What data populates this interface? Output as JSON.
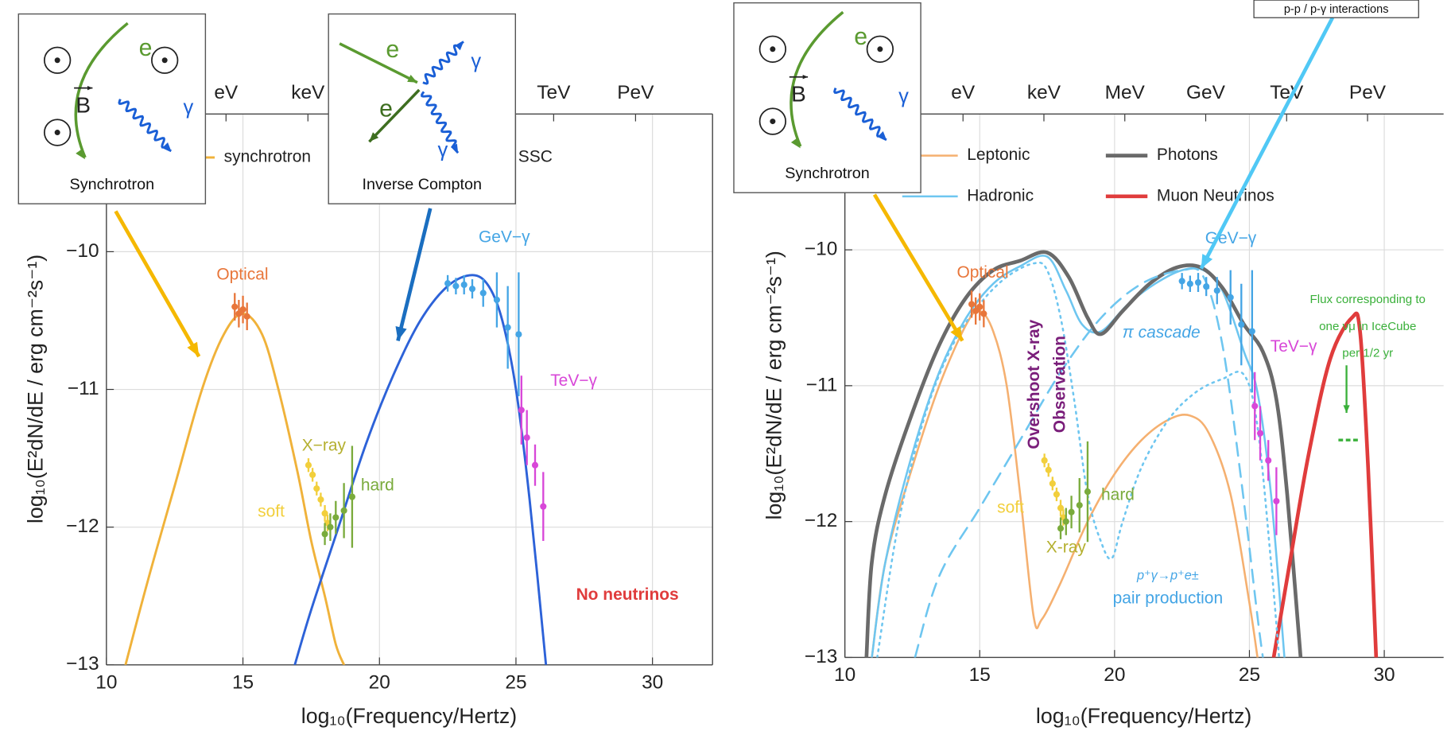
{
  "chart_data": [
    {
      "type": "line",
      "xlabel": "log₁₀(Frequency/Hertz)",
      "ylabel": "log₁₀(E²dN/dE / erg cm⁻²s⁻¹)",
      "xlim": [
        10,
        32.2
      ],
      "ylim": [
        -13,
        -9
      ],
      "xticks": [
        10,
        15,
        20,
        25,
        30
      ],
      "yticks": [
        {
          "value": -13,
          "label": "−13"
        },
        {
          "value": -12,
          "label": "−12"
        },
        {
          "value": -11,
          "label": "−11"
        },
        {
          "value": -10,
          "label": "−10"
        }
      ],
      "top_ticks": [
        {
          "value": 14.38,
          "label": "eV"
        },
        {
          "value": 17.38,
          "label": "keV"
        },
        {
          "value": 26.38,
          "label": "TeV"
        },
        {
          "value": 29.38,
          "label": "PeV"
        }
      ],
      "grid": true,
      "legend": true,
      "series": [
        {
          "name": "synchrotron",
          "color": "#f0b23a",
          "style": "solid",
          "x": [
            10.7,
            11.5,
            12.5,
            13.5,
            14.3,
            15.0,
            15.7,
            16.3,
            17.0,
            17.5,
            18.0,
            18.4,
            18.7
          ],
          "values": [
            -13,
            -12.4,
            -11.7,
            -11.0,
            -10.6,
            -10.45,
            -10.6,
            -11.0,
            -11.6,
            -12.1,
            -12.5,
            -12.85,
            -13
          ]
        },
        {
          "name": "SSC",
          "color": "#2d62d8",
          "style": "solid",
          "x": [
            16.9,
            17.5,
            18.5,
            19.5,
            20.5,
            21.5,
            22.5,
            23.4,
            24.0,
            24.5,
            25.0,
            25.5,
            26.1
          ],
          "values": [
            -13,
            -12.6,
            -12.0,
            -11.4,
            -10.9,
            -10.5,
            -10.25,
            -10.17,
            -10.25,
            -10.5,
            -11.0,
            -11.8,
            -13
          ]
        }
      ],
      "points": [
        {
          "color": "#e8763a",
          "x": [
            14.7,
            14.85,
            15.0,
            15.15
          ],
          "values": [
            -10.4,
            -10.45,
            -10.42,
            -10.47
          ],
          "errors": [
            0.1,
            0.1,
            0.1,
            0.1
          ]
        },
        {
          "color": "#f2cf3c",
          "x": [
            17.4,
            17.55,
            17.7,
            17.85,
            18.0,
            18.1
          ],
          "values": [
            -11.55,
            -11.62,
            -11.72,
            -11.8,
            -11.9,
            -11.97
          ],
          "errors": [
            0.05,
            0.05,
            0.05,
            0.05,
            0.06,
            0.06
          ]
        },
        {
          "color": "#7aab3c",
          "x": [
            18.0,
            18.2,
            18.4,
            18.7,
            19.0
          ],
          "values": [
            -12.05,
            -12.0,
            -11.93,
            -11.88,
            -11.78
          ],
          "errors": [
            0.08,
            0.1,
            0.12,
            0.2,
            0.37
          ]
        },
        {
          "color": "#44a5e5",
          "x": [
            22.5,
            22.8,
            23.1,
            23.4,
            23.8,
            24.3,
            24.7,
            25.1
          ],
          "values": [
            -10.23,
            -10.25,
            -10.24,
            -10.27,
            -10.3,
            -10.35,
            -10.55,
            -10.6
          ],
          "errors": [
            0.06,
            0.06,
            0.07,
            0.07,
            0.1,
            0.2,
            0.3,
            0.45
          ]
        },
        {
          "color": "#d847d8",
          "x": [
            25.2,
            25.4,
            25.7,
            26.0
          ],
          "values": [
            -11.15,
            -11.35,
            -11.55,
            -11.85
          ],
          "errors": [
            0.25,
            0.2,
            0.15,
            0.25
          ]
        }
      ],
      "annotations": [
        {
          "text": "Optical",
          "color": "#e8763a"
        },
        {
          "text": "X−ray",
          "color": "#b5b030"
        },
        {
          "text": "soft",
          "color": "#f2cf3c"
        },
        {
          "text": "hard",
          "color": "#7aab3c"
        },
        {
          "text": "GeV−γ",
          "color": "#44a5e5"
        },
        {
          "text": "TeV−γ",
          "color": "#d847d8"
        },
        {
          "text": "No neutrinos",
          "color": "#e03c3c"
        }
      ],
      "insets": [
        {
          "title": "Synchrotron",
          "labels": [
            "e",
            "γ",
            "B"
          ]
        },
        {
          "title": "Inverse Compton",
          "labels": [
            "e",
            "e",
            "γ",
            "γ"
          ]
        }
      ]
    },
    {
      "type": "line",
      "xlabel": "log₁₀(Frequency/Hertz)",
      "ylabel": "log₁₀(E²dN/dE / erg cm⁻²s⁻¹)",
      "xlim": [
        10,
        32.2
      ],
      "ylim": [
        -13,
        -9
      ],
      "xticks": [
        10,
        15,
        20,
        25,
        30
      ],
      "yticks": [
        {
          "value": -13,
          "label": "−13"
        },
        {
          "value": -12,
          "label": "−12"
        },
        {
          "value": -11,
          "label": "−11"
        },
        {
          "value": -10,
          "label": "−10"
        }
      ],
      "top_ticks": [
        {
          "value": 14.38,
          "label": "eV"
        },
        {
          "value": 17.38,
          "label": "keV"
        },
        {
          "value": 20.38,
          "label": "MeV"
        },
        {
          "value": 23.38,
          "label": "GeV"
        },
        {
          "value": 26.38,
          "label": "TeV"
        },
        {
          "value": 29.38,
          "label": "PeV"
        }
      ],
      "grid": true,
      "legend": true,
      "series": [
        {
          "name": "Leptonic",
          "color": "#f5b070",
          "style": "solid",
          "x": [
            11,
            11.5,
            12.5,
            13.5,
            14.5,
            15,
            15.5,
            16,
            16.5,
            17,
            17.3,
            18,
            19,
            20,
            21,
            22,
            22.8,
            23.5,
            24.3,
            25,
            25.3
          ],
          "values": [
            -13,
            -12.3,
            -11.6,
            -11.0,
            -10.55,
            -10.45,
            -10.6,
            -11.0,
            -11.8,
            -12.7,
            -12.72,
            -12.45,
            -12.0,
            -11.65,
            -11.4,
            -11.25,
            -11.22,
            -11.35,
            -11.8,
            -12.6,
            -13
          ]
        },
        {
          "name": "Hadronic",
          "color": "#6ec6f0",
          "style": "solid",
          "x": [
            11,
            11.5,
            12.5,
            13.5,
            14.5,
            15.5,
            16.5,
            17.5,
            18.2,
            18.8,
            19.5,
            20.5,
            21.5,
            22.5,
            23.3,
            24,
            24.8,
            25.3,
            25.8,
            26.3
          ],
          "values": [
            -13,
            -12.3,
            -11.5,
            -10.9,
            -10.5,
            -10.25,
            -10.12,
            -10.05,
            -10.3,
            -10.55,
            -10.6,
            -10.4,
            -10.25,
            -10.15,
            -10.15,
            -10.3,
            -10.75,
            -11.05,
            -11.8,
            -13
          ]
        },
        {
          "name": "Photons",
          "color": "#6a6a6a",
          "style": "solid",
          "x": [
            10.8,
            11,
            11.5,
            12.5,
            13.5,
            14.5,
            15.5,
            16.5,
            17.5,
            18.3,
            19,
            19.5,
            20.3,
            21.3,
            22.3,
            23.2,
            24,
            24.8,
            25.5,
            26,
            26.4,
            26.9
          ],
          "values": [
            -13,
            -12.3,
            -11.8,
            -11.2,
            -10.7,
            -10.35,
            -10.15,
            -10.08,
            -10.02,
            -10.2,
            -10.5,
            -10.62,
            -10.45,
            -10.25,
            -10.13,
            -10.13,
            -10.28,
            -10.55,
            -10.75,
            -11.1,
            -11.8,
            -13
          ]
        },
        {
          "name": "Muon Neutrinos",
          "color": "#e03c3c",
          "style": "solid",
          "x": [
            25.9,
            26.5,
            27.2,
            28,
            28.8,
            29.1,
            29.4,
            29.7
          ],
          "values": [
            -13,
            -12.3,
            -11.5,
            -10.8,
            -10.5,
            -10.6,
            -11.6,
            -13
          ]
        },
        {
          "color": "#6ec6f0",
          "style": "dotted",
          "x": [
            11.2,
            12,
            13,
            14,
            15,
            16,
            17,
            17.5,
            18,
            18.5,
            19,
            19.5,
            19.9,
            20.3,
            21,
            22,
            23,
            24,
            24.8,
            25.3,
            25.8,
            26.1
          ],
          "values": [
            -13,
            -12,
            -11.2,
            -10.7,
            -10.4,
            -10.2,
            -10.1,
            -10.15,
            -10.5,
            -11.1,
            -11.8,
            -12.15,
            -12.27,
            -12.0,
            -11.6,
            -11.25,
            -11.05,
            -10.95,
            -10.92,
            -11.3,
            -12.3,
            -13
          ]
        },
        {
          "color": "#6ec6f0",
          "style": "dashed",
          "x": [
            12.6,
            13.5,
            15,
            16.5,
            18,
            19.5,
            21,
            22.5,
            23.3,
            24,
            24.7,
            25.3,
            25.5
          ],
          "values": [
            -13,
            -12.4,
            -11.9,
            -11.4,
            -10.9,
            -10.5,
            -10.25,
            -10.15,
            -10.2,
            -10.7,
            -11.7,
            -12.7,
            -13
          ]
        }
      ],
      "points": [
        {
          "color": "#e8763a",
          "x": [
            14.7,
            14.85,
            15.0,
            15.15
          ],
          "values": [
            -10.4,
            -10.45,
            -10.42,
            -10.47
          ],
          "errors": [
            0.1,
            0.1,
            0.1,
            0.1
          ]
        },
        {
          "color": "#f2cf3c",
          "x": [
            17.4,
            17.55,
            17.7,
            17.85,
            18.0,
            18.1
          ],
          "values": [
            -11.55,
            -11.62,
            -11.72,
            -11.8,
            -11.9,
            -11.97
          ],
          "errors": [
            0.05,
            0.05,
            0.05,
            0.05,
            0.06,
            0.06
          ]
        },
        {
          "color": "#7aab3c",
          "x": [
            18.0,
            18.2,
            18.4,
            18.7,
            19.0
          ],
          "values": [
            -12.05,
            -12.0,
            -11.93,
            -11.88,
            -11.78
          ],
          "errors": [
            0.08,
            0.1,
            0.12,
            0.2,
            0.37
          ]
        },
        {
          "color": "#44a5e5",
          "x": [
            22.5,
            22.8,
            23.1,
            23.4,
            23.8,
            24.3,
            24.7,
            25.1
          ],
          "values": [
            -10.23,
            -10.25,
            -10.24,
            -10.27,
            -10.3,
            -10.35,
            -10.55,
            -10.6
          ],
          "errors": [
            0.06,
            0.06,
            0.07,
            0.07,
            0.1,
            0.2,
            0.3,
            0.45
          ]
        },
        {
          "color": "#d847d8",
          "x": [
            25.2,
            25.4,
            25.7,
            26.0
          ],
          "values": [
            -11.15,
            -11.35,
            -11.55,
            -11.85
          ],
          "errors": [
            0.25,
            0.2,
            0.15,
            0.25
          ]
        }
      ],
      "upper_limits": [
        {
          "color": "#3ab03a",
          "x": [
            28.3,
            29.1
          ],
          "value": -11.4
        }
      ],
      "annotations": [
        {
          "text": "Optical",
          "color": "#e8763a"
        },
        {
          "text": "soft",
          "color": "#f2cf3c"
        },
        {
          "text": "hard",
          "color": "#7aab3c"
        },
        {
          "text": "X-ray",
          "color": "#b5b030"
        },
        {
          "text": "GeV−γ",
          "color": "#44a5e5"
        },
        {
          "text": "TeV−γ",
          "color": "#d847d8"
        },
        {
          "text": "π cascade",
          "color": "#44a5e5"
        },
        {
          "text": "Overshoot X-ray",
          "color": "#7a1e7a"
        },
        {
          "text": "Observation",
          "color": "#7a1e7a"
        },
        {
          "text": "p⁺γ→p⁺e±",
          "color": "#44a5e5"
        },
        {
          "text": "pair production",
          "color": "#44a5e5"
        },
        {
          "text": "Flux corresponding to",
          "color": "#3ab03a"
        },
        {
          "text": "one νμ in IceCube",
          "color": "#3ab03a"
        },
        {
          "text": "per 1/2 yr",
          "color": "#3ab03a"
        }
      ],
      "insets": [
        {
          "title": "Synchrotron",
          "labels": [
            "e",
            "γ",
            "B"
          ]
        }
      ],
      "callout": "p-p / p-γ interactions"
    }
  ]
}
